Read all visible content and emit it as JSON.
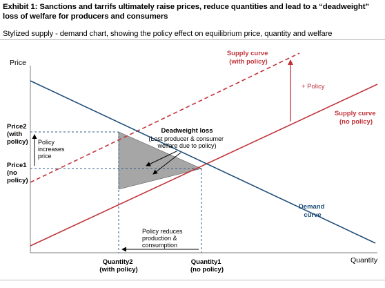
{
  "title": "Exhibit 1: Sanctions and tarrifs ultimately raise prices, reduce quantities and lead to a “deadweight” loss of welfare for producers and consumers",
  "subtitle": "Stylized supply - demand chart, showing the policy effect on equilibrium price, quantity and welfare",
  "colors": {
    "supply": "#c0333a",
    "demand": "#1f4e79",
    "guide": "#2e5b8a",
    "deadweight_fill": "#a6a6a6",
    "axis": "#7f7f7f"
  },
  "chart_data": {
    "type": "line",
    "xlabel": "Quantity",
    "ylabel": "Price",
    "series": [
      {
        "name": "Supply curve (no policy)",
        "style": "solid",
        "color": "#c0333a"
      },
      {
        "name": "Supply curve (with policy)",
        "style": "dashed",
        "color": "#c0333a"
      },
      {
        "name": "Demand curve",
        "style": "solid",
        "color": "#1f4e79"
      }
    ],
    "y_ticks": [
      [
        "Price2",
        "(with",
        "policy)"
      ],
      [
        "Price1",
        "(no",
        "policy)"
      ]
    ],
    "x_ticks": [
      [
        "Quantity2",
        "(with policy)"
      ],
      [
        "Quantity1",
        "(no policy)"
      ]
    ],
    "labels": {
      "supply_with_policy": [
        "Supply curve",
        "(with policy)"
      ],
      "supply_no_policy": [
        "Supply curve",
        "(no policy)"
      ],
      "demand": [
        "Demand",
        "curve"
      ],
      "policy_shift": "+ Policy"
    },
    "annotations": {
      "deadweight_title": "Deadweight loss",
      "deadweight_detail": [
        "(Lost producer & consumer",
        "welfare due to policy)"
      ],
      "price_note": [
        "Policy",
        "increases",
        "price"
      ],
      "quantity_note": [
        "Policy reduces",
        "production &",
        "consumption"
      ]
    }
  }
}
